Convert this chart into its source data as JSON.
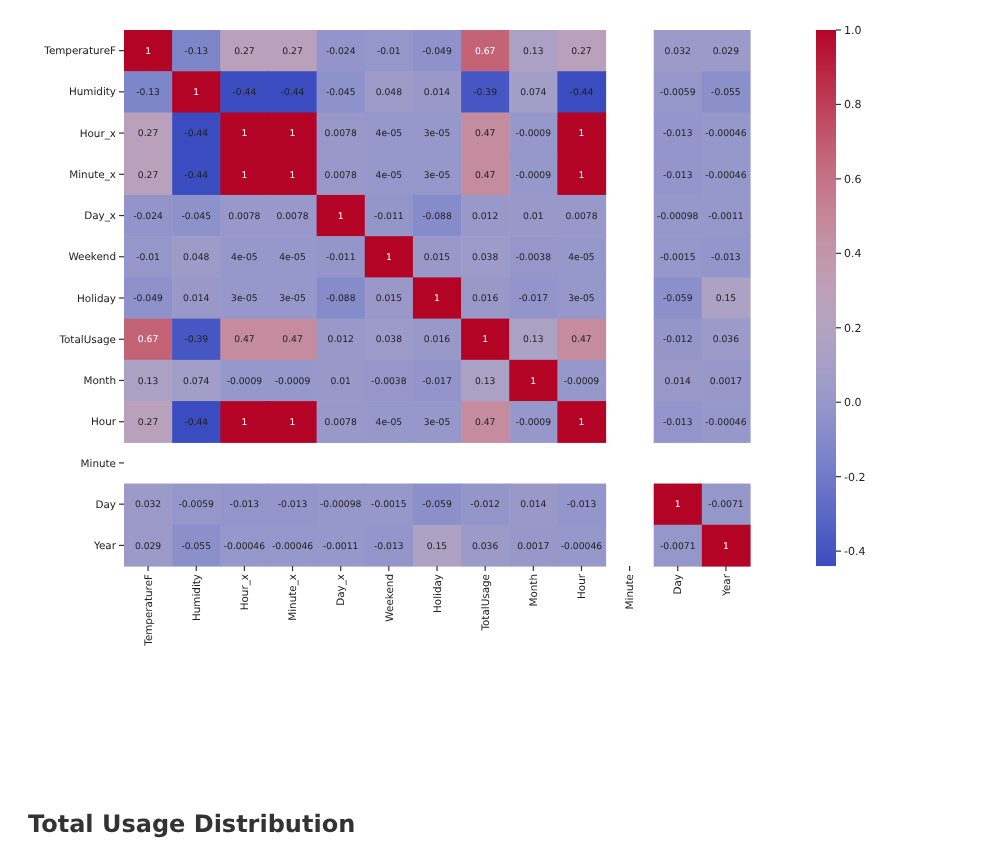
{
  "chart_data": {
    "type": "heatmap",
    "categories": [
      "TemperatureF",
      "Humidity",
      "Hour_x",
      "Minute_x",
      "Day_x",
      "Weekend",
      "Holiday",
      "TotalUsage",
      "Month",
      "Hour",
      "Minute",
      "Day",
      "Year"
    ],
    "y_categories": [
      "TemperatureF",
      "Humidity",
      "Hour_x",
      "Minute_x",
      "Day_x",
      "Weekend",
      "Holiday",
      "TotalUsage",
      "Month",
      "Hour",
      "Minute",
      "Day",
      "Year"
    ],
    "cells": [
      [
        1,
        -0.13,
        0.27,
        0.27,
        -0.024,
        -0.01,
        -0.049,
        0.67,
        0.13,
        0.27,
        null,
        0.032,
        0.029
      ],
      [
        -0.13,
        1,
        -0.44,
        -0.44,
        -0.045,
        0.048,
        0.014,
        -0.39,
        0.074,
        -0.44,
        null,
        -0.0059,
        -0.055
      ],
      [
        0.27,
        -0.44,
        1,
        1,
        0.0078,
        4e-05,
        3e-05,
        0.47,
        -0.0009,
        1,
        null,
        -0.013,
        -0.00046
      ],
      [
        0.27,
        -0.44,
        1,
        1,
        0.0078,
        4e-05,
        3e-05,
        0.47,
        -0.0009,
        1,
        null,
        -0.013,
        -0.00046
      ],
      [
        -0.024,
        -0.045,
        0.0078,
        0.0078,
        1,
        -0.011,
        -0.088,
        0.012,
        0.01,
        0.0078,
        null,
        -0.00098,
        -0.0011
      ],
      [
        -0.01,
        0.048,
        4e-05,
        4e-05,
        -0.011,
        1,
        0.015,
        0.038,
        -0.0038,
        4e-05,
        null,
        -0.0015,
        -0.013
      ],
      [
        -0.049,
        0.014,
        3e-05,
        3e-05,
        -0.088,
        0.015,
        1,
        0.016,
        -0.017,
        3e-05,
        null,
        -0.059,
        0.15
      ],
      [
        0.67,
        -0.39,
        0.47,
        0.47,
        0.012,
        0.038,
        0.016,
        1,
        0.13,
        0.47,
        null,
        -0.012,
        0.036
      ],
      [
        0.13,
        0.074,
        -0.0009,
        -0.0009,
        0.01,
        -0.0038,
        -0.017,
        0.13,
        1,
        -0.0009,
        null,
        0.014,
        0.0017
      ],
      [
        0.27,
        -0.44,
        1,
        1,
        0.0078,
        4e-05,
        3e-05,
        0.47,
        -0.0009,
        1,
        null,
        -0.013,
        -0.00046
      ],
      [
        null,
        null,
        null,
        null,
        null,
        null,
        null,
        null,
        null,
        null,
        null,
        null,
        null
      ],
      [
        0.032,
        -0.0059,
        -0.013,
        -0.013,
        -0.00098,
        -0.0015,
        -0.059,
        -0.012,
        0.014,
        -0.013,
        null,
        1,
        -0.0071
      ],
      [
        0.029,
        -0.055,
        -0.00046,
        -0.00046,
        -0.0011,
        -0.013,
        0.15,
        0.036,
        0.0017,
        -0.00046,
        null,
        -0.0071,
        1
      ]
    ],
    "cell_labels": [
      [
        "1",
        "-0.13",
        "0.27",
        "0.27",
        "-0.024",
        "-0.01",
        "-0.049",
        "0.67",
        "0.13",
        "0.27",
        null,
        "0.032",
        "0.029"
      ],
      [
        "-0.13",
        "1",
        "-0.44",
        "-0.44",
        "-0.045",
        "0.048",
        "0.014",
        "-0.39",
        "0.074",
        "-0.44",
        null,
        "-0.0059",
        "-0.055"
      ],
      [
        "0.27",
        "-0.44",
        "1",
        "1",
        "0.0078",
        "4e-05",
        "3e-05",
        "0.47",
        "-0.0009",
        "1",
        null,
        "-0.013",
        "-0.00046"
      ],
      [
        "0.27",
        "-0.44",
        "1",
        "1",
        "0.0078",
        "4e-05",
        "3e-05",
        "0.47",
        "-0.0009",
        "1",
        null,
        "-0.013",
        "-0.00046"
      ],
      [
        "-0.024",
        "-0.045",
        "0.0078",
        "0.0078",
        "1",
        "-0.011",
        "-0.088",
        "0.012",
        "0.01",
        "0.0078",
        null,
        "-0.00098",
        "-0.0011"
      ],
      [
        "-0.01",
        "0.048",
        "4e-05",
        "4e-05",
        "-0.011",
        "1",
        "0.015",
        "0.038",
        "-0.0038",
        "4e-05",
        null,
        "-0.0015",
        "-0.013"
      ],
      [
        "-0.049",
        "0.014",
        "3e-05",
        "3e-05",
        "-0.088",
        "0.015",
        "1",
        "0.016",
        "-0.017",
        "3e-05",
        null,
        "-0.059",
        "0.15"
      ],
      [
        "0.67",
        "-0.39",
        "0.47",
        "0.47",
        "0.012",
        "0.038",
        "0.016",
        "1",
        "0.13",
        "0.47",
        null,
        "-0.012",
        "0.036"
      ],
      [
        "0.13",
        "0.074",
        "-0.0009",
        "-0.0009",
        "0.01",
        "-0.0038",
        "-0.017",
        "0.13",
        "1",
        "-0.0009",
        null,
        "0.014",
        "0.0017"
      ],
      [
        "0.27",
        "-0.44",
        "1",
        "1",
        "0.0078",
        "4e-05",
        "3e-05",
        "0.47",
        "-0.0009",
        "1",
        null,
        "-0.013",
        "-0.00046"
      ],
      [
        null,
        null,
        null,
        null,
        null,
        null,
        null,
        null,
        null,
        null,
        null,
        null,
        null
      ],
      [
        "0.032",
        "-0.0059",
        "-0.013",
        "-0.013",
        "-0.00098",
        "-0.0015",
        "-0.059",
        "-0.012",
        "0.014",
        "-0.013",
        null,
        "1",
        "-0.0071"
      ],
      [
        "0.029",
        "-0.055",
        "-0.00046",
        "-0.00046",
        "-0.0011",
        "-0.013",
        "0.15",
        "0.036",
        "0.0017",
        "-0.00046",
        null,
        "-0.0071",
        "1"
      ]
    ],
    "clim": [
      -0.44,
      1
    ],
    "cticks": [
      {
        "value": 1,
        "label": "1.0"
      },
      {
        "value": 0.8,
        "label": "0.8"
      },
      {
        "value": 0.6,
        "label": "0.6"
      },
      {
        "value": 0.4,
        "label": "0.4"
      },
      {
        "value": 0.2,
        "label": "0.2"
      },
      {
        "value": 0,
        "label": "0.0"
      },
      {
        "value": -0.2,
        "label": "-0.2"
      },
      {
        "value": -0.4,
        "label": "-0.4"
      }
    ],
    "annotations": [
      "Total Usage Distribution"
    ]
  }
}
